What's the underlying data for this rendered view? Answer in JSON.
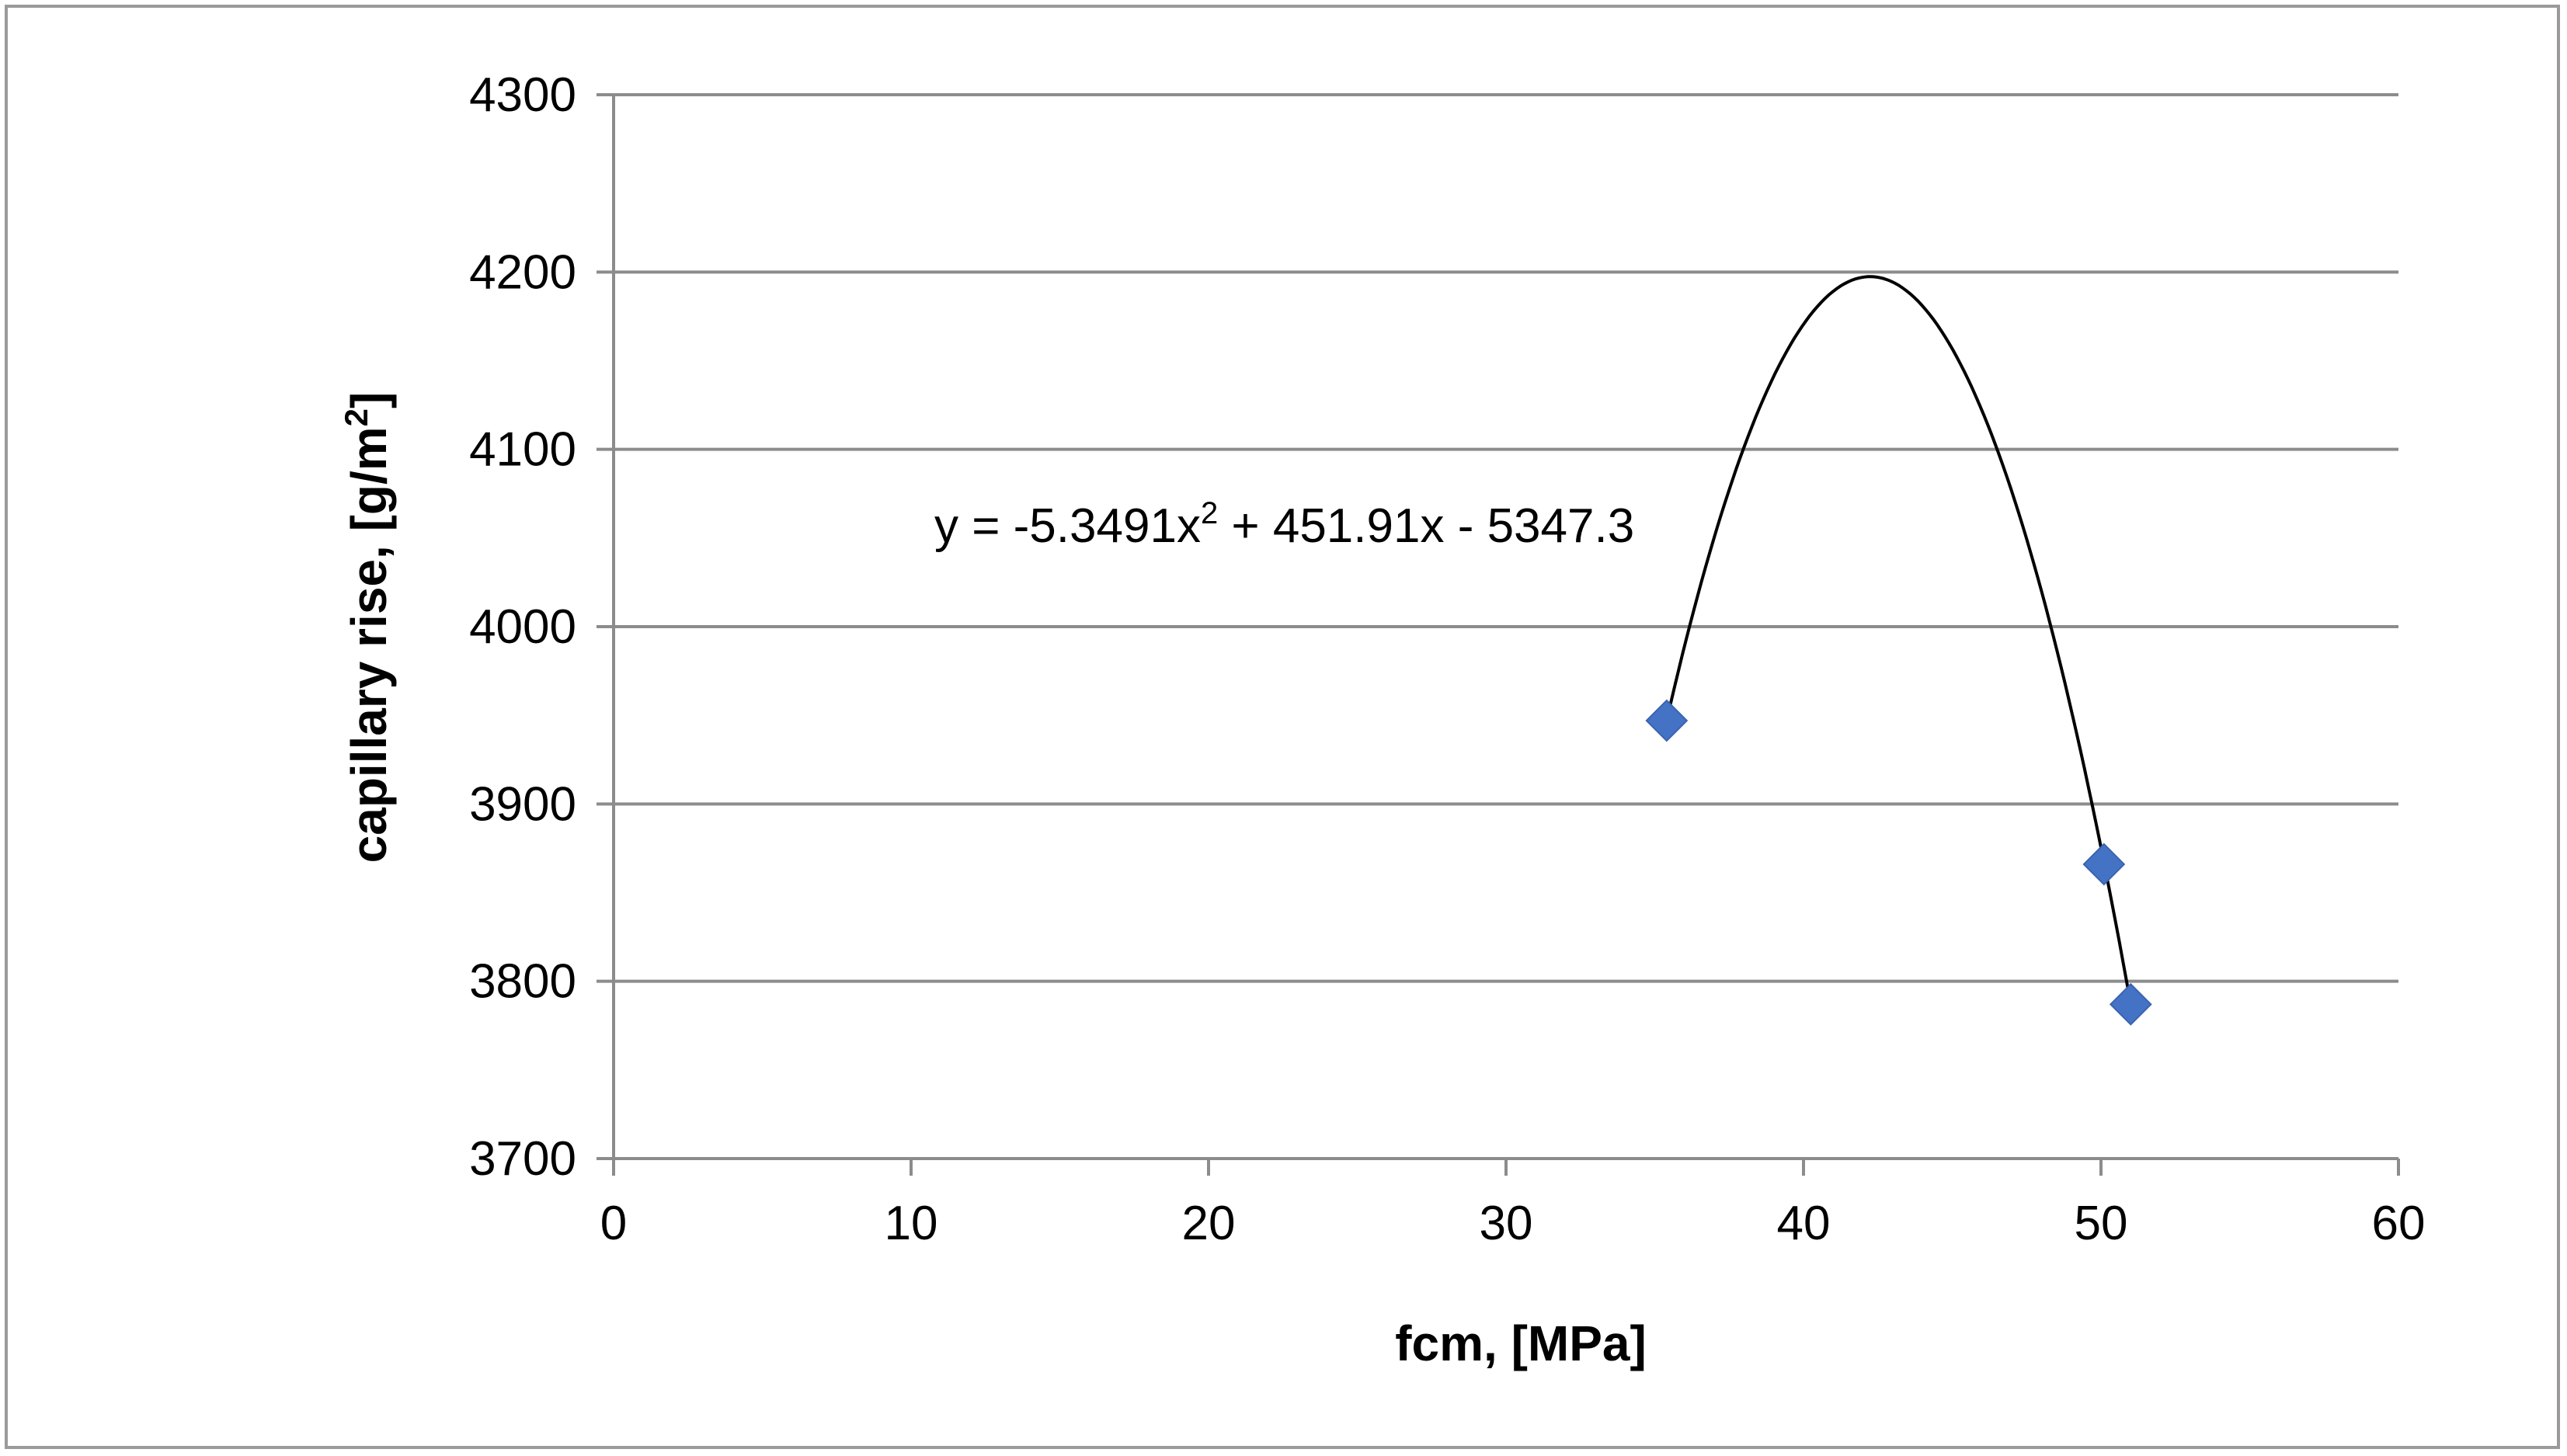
{
  "chart_data": {
    "type": "scatter",
    "title": "",
    "xlabel": "fcm, [MPa]",
    "ylabel_main": "capillary rise, [g/m",
    "ylabel_sup": "2",
    "ylabel_end": "]",
    "xlim": [
      0,
      60
    ],
    "ylim": [
      3700,
      4300
    ],
    "x_ticks": [
      0,
      10,
      20,
      30,
      40,
      50,
      60
    ],
    "y_ticks": [
      3700,
      3800,
      3900,
      4000,
      4100,
      4200,
      4300
    ],
    "grid": "horizontal",
    "legend": "none",
    "series": [
      {
        "x": [
          35.4,
          50.1,
          51.0
        ],
        "y": [
          3947,
          3866,
          3787
        ],
        "marker": "diamond",
        "color": "#4472C4"
      }
    ],
    "trendline": {
      "type": "polynomial",
      "order": 2,
      "coefficients": [
        -5.3491,
        451.91,
        -5347.3
      ],
      "x_range": [
        35.4,
        51.0
      ],
      "color": "#000000",
      "equation_main": "y = -5.3491x",
      "equation_sup": "2",
      "equation_end": " + 451.91x - 5347.3"
    }
  },
  "colors": {
    "gridline": "#8c8c8c",
    "axis": "#8c8c8c",
    "frame": "#9a9a9a"
  }
}
